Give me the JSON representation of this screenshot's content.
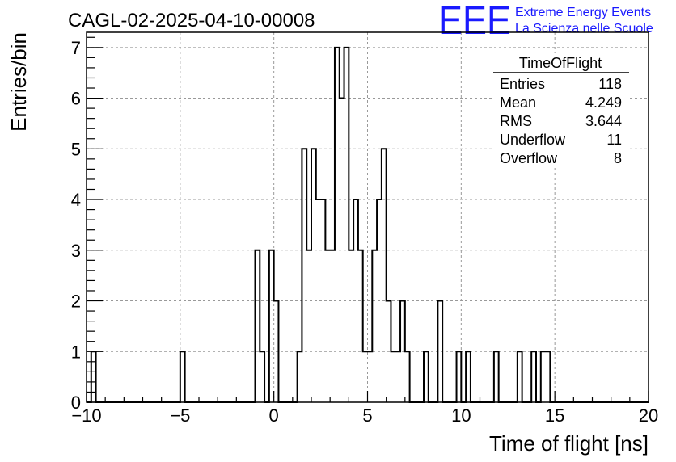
{
  "chart_data": {
    "type": "histogram",
    "title": "CAGL-02-2025-04-10-00008",
    "xlabel": "Time of flight [ns]",
    "ylabel": "Entries/bin",
    "xlim": [
      -10,
      20
    ],
    "ylim": [
      0,
      7.3
    ],
    "xticks": [
      -10,
      -5,
      0,
      5,
      10,
      15,
      20
    ],
    "yticks": [
      0,
      1,
      2,
      3,
      4,
      5,
      6,
      7
    ],
    "grid": true,
    "bin_width": 0.25,
    "bin_starts": [
      -9.75,
      -5.0,
      -1.0,
      -0.75,
      -0.25,
      0.0,
      1.25,
      1.5,
      1.75,
      2.0,
      2.25,
      2.5,
      2.75,
      3.0,
      3.25,
      3.5,
      3.75,
      4.0,
      4.25,
      4.5,
      4.75,
      5.0,
      5.25,
      5.5,
      5.75,
      6.0,
      6.25,
      6.5,
      6.75,
      7.0,
      8.0,
      8.75,
      9.75,
      10.25,
      11.75,
      13.0,
      13.75,
      14.25,
      14.5
    ],
    "bin_values": [
      1,
      1,
      3,
      1,
      3,
      2,
      1,
      5,
      3,
      5,
      4,
      4,
      3,
      3,
      7,
      6,
      7,
      3,
      4,
      3,
      1,
      1,
      3,
      4,
      5,
      2,
      1,
      1,
      2,
      1,
      1,
      2,
      1,
      1,
      1,
      1,
      1,
      1,
      1
    ]
  },
  "stats": {
    "title": "TimeOfFlight",
    "rows": [
      {
        "label": "Entries",
        "value": "118"
      },
      {
        "label": "Mean",
        "value": "4.249"
      },
      {
        "label": "RMS",
        "value": "3.644"
      },
      {
        "label": "Underflow",
        "value": "11"
      },
      {
        "label": "Overflow",
        "value": "8"
      }
    ]
  },
  "logo": {
    "mark": "EEE",
    "line1": "Extreme Energy Events",
    "line2": "La Scienza nelle Scuole",
    "color": "#1a1aff"
  }
}
